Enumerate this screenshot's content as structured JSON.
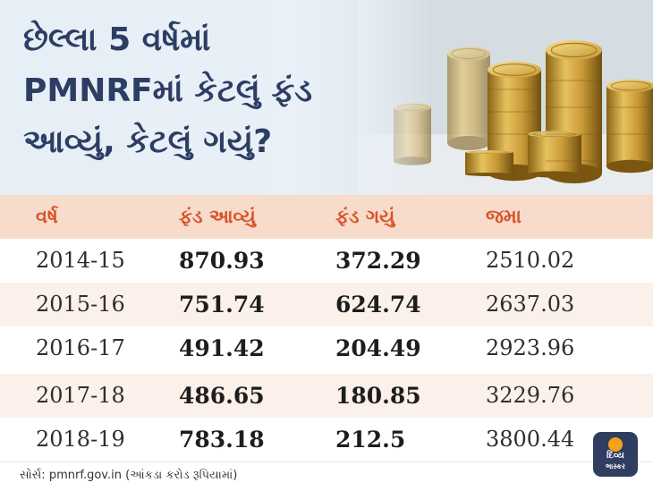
{
  "title_lines": [
    "છેલ્લા 5 વર્ષમાં",
    "PMNRFમાં કેટલું ફંડ",
    "આવ્યું, કેટલું ગયું?"
  ],
  "columns": [
    "વર્ષ",
    "ફંડ આવ્યું",
    "ફંડ ગયું",
    "જમા"
  ],
  "rows": [
    {
      "year": "2014-15",
      "received": "870.93",
      "spent": "372.29",
      "balance": "2510.02"
    },
    {
      "year": "2015-16",
      "received": "751.74",
      "spent": "624.74",
      "balance": "2637.03"
    },
    {
      "year": "2016-17",
      "received": "491.42",
      "spent": "204.49",
      "balance": "2923.96"
    },
    {
      "year": "2017-18",
      "received": "486.65",
      "spent": "180.85",
      "balance": "3229.76"
    },
    {
      "year": "2018-19",
      "received": "783.18",
      "spent": "212.5",
      "balance": "3800.44"
    }
  ],
  "source": "સોર્સ: pmnrf.gov.in (આંકડા કરોડ રૂપિયામાં)",
  "logo": {
    "line1": "દિવ્ય",
    "line2": "ભાસ્કર"
  },
  "colors": {
    "title": "#2c3e63",
    "header_text": "#d9542a",
    "header_bg": "#f7dbcb",
    "alt_row_bg": "#fbf1ea",
    "logo_bg": "#2f3d60",
    "logo_sun": "#f5a21b"
  }
}
